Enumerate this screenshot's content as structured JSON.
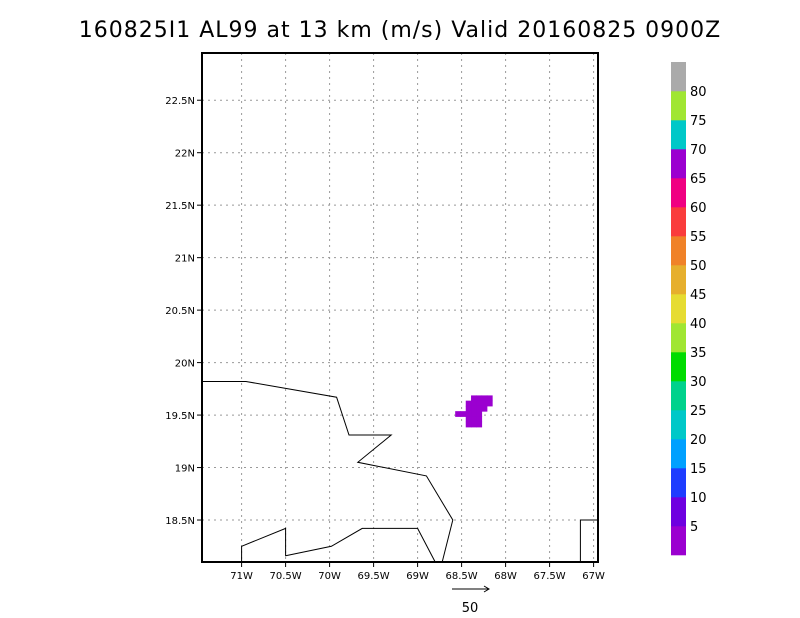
{
  "title": "160825I1 AL99 at 13 km (m/s) Valid 20160825 0900Z",
  "map": {
    "lon_range": [
      -71.45,
      -66.95
    ],
    "lat_range": [
      18.1,
      22.95
    ],
    "lon_ticks": [
      {
        "value": -71,
        "label": "71W"
      },
      {
        "value": -70.5,
        "label": "70.5W"
      },
      {
        "value": -70,
        "label": "70W"
      },
      {
        "value": -69.5,
        "label": "69.5W"
      },
      {
        "value": -69,
        "label": "69W"
      },
      {
        "value": -68.5,
        "label": "68.5W"
      },
      {
        "value": -68,
        "label": "68W"
      },
      {
        "value": -67.5,
        "label": "67.5W"
      },
      {
        "value": -67,
        "label": "67W"
      }
    ],
    "lat_ticks": [
      {
        "value": 18.5,
        "label": "18.5N"
      },
      {
        "value": 19,
        "label": "19N"
      },
      {
        "value": 19.5,
        "label": "19.5N"
      },
      {
        "value": 20,
        "label": "20N"
      },
      {
        "value": 20.5,
        "label": "20.5N"
      },
      {
        "value": 21,
        "label": "21N"
      },
      {
        "value": 21.5,
        "label": "21.5N"
      },
      {
        "value": 22,
        "label": "22N"
      },
      {
        "value": 22.5,
        "label": "22.5N"
      }
    ],
    "gridlines": true,
    "coastlines": [
      [
        [
          -71.45,
          19.82
        ],
        [
          -70.95,
          19.82
        ],
        [
          -69.92,
          19.67
        ],
        [
          -69.78,
          19.31
        ],
        [
          -69.3,
          19.31
        ],
        [
          -69.68,
          19.05
        ],
        [
          -68.9,
          18.92
        ],
        [
          -68.6,
          18.5
        ],
        [
          -68.72,
          18.1
        ]
      ],
      [
        [
          -68.8,
          18.1
        ],
        [
          -69.0,
          18.42
        ],
        [
          -69.27,
          18.42
        ],
        [
          -69.63,
          18.42
        ],
        [
          -69.98,
          18.25
        ],
        [
          -70.5,
          18.16
        ],
        [
          -70.5,
          18.42
        ],
        [
          -71.0,
          18.25
        ],
        [
          -71.0,
          18.1
        ]
      ],
      [
        [
          -67.15,
          18.1
        ],
        [
          -67.15,
          18.5
        ],
        [
          -66.95,
          18.5
        ]
      ]
    ],
    "wind_cells": [
      {
        "lon": -68.18,
        "lat": 19.66
      },
      {
        "lon": -68.24,
        "lat": 19.66
      },
      {
        "lon": -68.3,
        "lat": 19.66
      },
      {
        "lon": -68.36,
        "lat": 19.66
      },
      {
        "lon": -68.18,
        "lat": 19.61
      },
      {
        "lon": -68.24,
        "lat": 19.61
      },
      {
        "lon": -68.3,
        "lat": 19.61
      },
      {
        "lon": -68.36,
        "lat": 19.61
      },
      {
        "lon": -68.42,
        "lat": 19.61
      },
      {
        "lon": -68.24,
        "lat": 19.56
      },
      {
        "lon": -68.3,
        "lat": 19.56
      },
      {
        "lon": -68.36,
        "lat": 19.56
      },
      {
        "lon": -68.42,
        "lat": 19.56
      },
      {
        "lon": -68.3,
        "lat": 19.51
      },
      {
        "lon": -68.36,
        "lat": 19.51
      },
      {
        "lon": -68.42,
        "lat": 19.51
      },
      {
        "lon": -68.48,
        "lat": 19.51
      },
      {
        "lon": -68.54,
        "lat": 19.51
      },
      {
        "lon": -68.3,
        "lat": 19.46
      },
      {
        "lon": -68.36,
        "lat": 19.46
      },
      {
        "lon": -68.42,
        "lat": 19.46
      },
      {
        "lon": -68.36,
        "lat": 19.41
      },
      {
        "lon": -68.42,
        "lat": 19.41
      },
      {
        "lon": -68.3,
        "lat": 19.41
      }
    ],
    "wind_color": "#9b00d0",
    "reference_vector": {
      "label": "50"
    }
  },
  "colorbar": {
    "labels": [
      "5",
      "10",
      "15",
      "20",
      "25",
      "30",
      "35",
      "40",
      "45",
      "50",
      "55",
      "60",
      "65",
      "70",
      "75",
      "80"
    ],
    "colors": [
      "#9b00d0",
      "#6e00e0",
      "#1e3cff",
      "#00a0ff",
      "#00c8c8",
      "#00d28c",
      "#00dc00",
      "#a0e632",
      "#e6dc32",
      "#e6af2d",
      "#f08228",
      "#fa3c3c",
      "#f00082",
      "#9b00d0",
      "#00c8c8",
      "#a0e632",
      "#aaaaaa"
    ]
  }
}
